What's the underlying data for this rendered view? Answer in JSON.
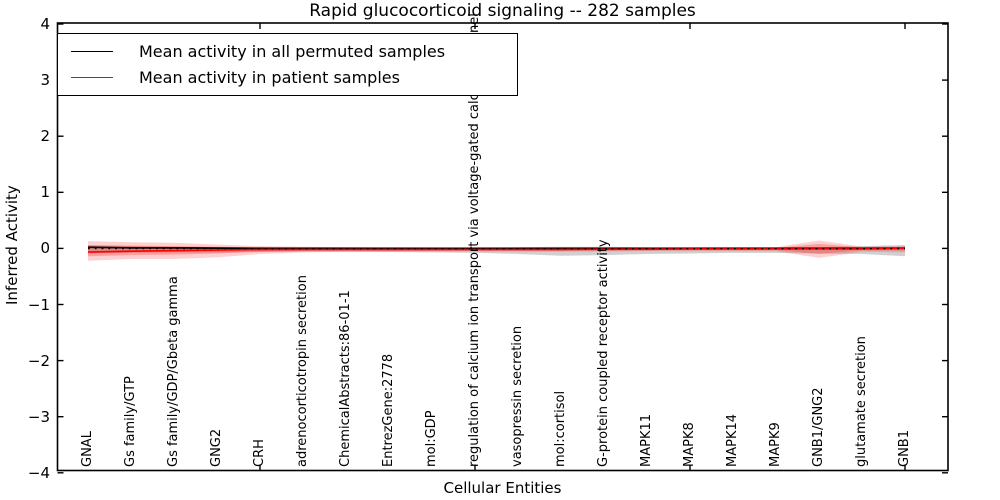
{
  "chart_data": {
    "type": "line",
    "title": "Rapid glucocorticoid signaling -- 282 samples",
    "xlabel": "Cellular Entities",
    "ylabel": "Inferred Activity",
    "ylim": [
      -4,
      4
    ],
    "grid": false,
    "legend_position": "upper left",
    "categories": [
      "GNAL",
      "Gs family/GTP",
      "Gs family/GDP/Gbeta gamma",
      "GNG2",
      "CRH",
      "adrenocorticotropin secretion",
      "ChemicalAbstracts:86-01-1",
      "EntrezGene:2778",
      "mol:GDP",
      "regulation of calcium ion transport via voltage-gated calcium channel",
      "vasopressin secretion",
      "mol:cortisol",
      "G-protein coupled receptor activity",
      "MAPK11",
      "MAPK8",
      "MAPK14",
      "MAPK9",
      "GNB1/GNG2",
      "glutamate secretion",
      "GNB1"
    ],
    "series": [
      {
        "name": "Mean activity in all permuted samples",
        "color": "#000000",
        "values": [
          0.02,
          0.01,
          0.01,
          0.005,
          0,
          0,
          0,
          0,
          0,
          0,
          0,
          0,
          0,
          0,
          0,
          0,
          0,
          0,
          0,
          0.005
        ]
      },
      {
        "name": "Mean activity in patient samples",
        "color": "#ff0000",
        "values": [
          -0.065,
          -0.05,
          -0.04,
          -0.03,
          -0.02,
          -0.02,
          -0.02,
          -0.02,
          -0.02,
          -0.02,
          -0.02,
          -0.02,
          -0.015,
          -0.015,
          -0.01,
          -0.01,
          -0.01,
          -0.01,
          -0.01,
          0
        ]
      }
    ],
    "bands": [
      {
        "name": "permuted-samples-spread",
        "color": "#777777",
        "opacity": 0.35,
        "upper": [
          0.05,
          0.04,
          0.03,
          0.02,
          0.02,
          0.02,
          0.02,
          0.015,
          0.015,
          0.015,
          0.02,
          0.03,
          0.03,
          0.02,
          0.02,
          0.02,
          0.02,
          0.02,
          0.04,
          0.06
        ],
        "lower": [
          -0.09,
          -0.08,
          -0.07,
          -0.07,
          -0.065,
          -0.06,
          -0.06,
          -0.065,
          -0.07,
          -0.08,
          -0.1,
          -0.13,
          -0.12,
          -0.1,
          -0.09,
          -0.08,
          -0.08,
          -0.09,
          -0.1,
          -0.14
        ]
      },
      {
        "name": "patient-samples-spread-outer",
        "color": "#ff2a2a",
        "opacity": 0.22,
        "upper": [
          0.13,
          0.11,
          0.1,
          0.07,
          0.04,
          0.03,
          0.02,
          0.02,
          0.015,
          0.015,
          0.015,
          0.015,
          0.015,
          0.015,
          0.015,
          0.02,
          0.02,
          0.14,
          0.03,
          0.04
        ],
        "lower": [
          -0.22,
          -0.19,
          -0.19,
          -0.16,
          -0.1,
          -0.07,
          -0.06,
          -0.06,
          -0.055,
          -0.055,
          -0.055,
          -0.06,
          -0.055,
          -0.05,
          -0.05,
          -0.05,
          -0.05,
          -0.17,
          -0.06,
          -0.07
        ]
      },
      {
        "name": "patient-samples-spread-inner",
        "color": "#ff2a2a",
        "opacity": 0.3,
        "upper": [
          0.06,
          0.05,
          0.04,
          0.03,
          0.02,
          0.01,
          0.01,
          0.01,
          0.01,
          0.01,
          0.01,
          0.01,
          0.01,
          0.01,
          0.01,
          0.01,
          0.01,
          0.08,
          0.015,
          0.02
        ],
        "lower": [
          -0.14,
          -0.12,
          -0.11,
          -0.09,
          -0.06,
          -0.04,
          -0.04,
          -0.04,
          -0.035,
          -0.035,
          -0.035,
          -0.04,
          -0.035,
          -0.03,
          -0.03,
          -0.03,
          -0.03,
          -0.1,
          -0.035,
          -0.04
        ]
      }
    ],
    "reference_line": {
      "value": 0,
      "style": "dotted",
      "color": "#000000"
    }
  },
  "axes": {
    "yticks": [
      {
        "label": "4",
        "value": 4
      },
      {
        "label": "3",
        "value": 3
      },
      {
        "label": "2",
        "value": 2
      },
      {
        "label": "1",
        "value": 1
      },
      {
        "label": "0",
        "value": 0
      },
      {
        "label": "−1",
        "value": -1
      },
      {
        "label": "−2",
        "value": -2
      },
      {
        "label": "−3",
        "value": -3
      },
      {
        "label": "−4",
        "value": -4
      }
    ],
    "xtick_major_positions": [
      5,
      10,
      15,
      20
    ]
  },
  "legend": {
    "items": [
      {
        "label": "Mean activity in all permuted samples",
        "color": "#000000"
      },
      {
        "label": "Mean activity in patient samples",
        "color": "#ff0000"
      }
    ]
  }
}
